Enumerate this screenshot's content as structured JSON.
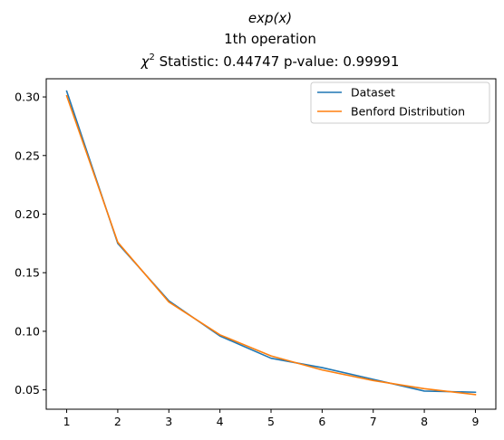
{
  "chart_data": {
    "type": "line",
    "title_lines": {
      "function": "exp(x)",
      "operation": "1th operation",
      "chi_label": "χ",
      "chi_sup": "2",
      "stat_text": " Statistic: 0.44747 p-value: 0.99991"
    },
    "xlabel": "",
    "ylabel": "",
    "x": [
      1,
      2,
      3,
      4,
      5,
      6,
      7,
      8,
      9
    ],
    "xlim": [
      0.6,
      9.4
    ],
    "ylim": [
      0.0335,
      0.3155
    ],
    "x_ticks": [
      "1",
      "2",
      "3",
      "4",
      "5",
      "6",
      "7",
      "8",
      "9"
    ],
    "y_ticks": [
      "0.05",
      "0.10",
      "0.15",
      "0.20",
      "0.25",
      "0.30"
    ],
    "y_tick_values": [
      0.05,
      0.1,
      0.15,
      0.2,
      0.25,
      0.3
    ],
    "grid": false,
    "legend_position": "upper right",
    "series": [
      {
        "name": "Dataset",
        "color": "#1f77b4",
        "values": [
          0.305,
          0.175,
          0.126,
          0.096,
          0.077,
          0.069,
          0.059,
          0.049,
          0.048
        ]
      },
      {
        "name": "Benford Distribution",
        "color": "#ff7f0e",
        "values": [
          0.301,
          0.176,
          0.125,
          0.097,
          0.079,
          0.067,
          0.058,
          0.051,
          0.046
        ]
      }
    ]
  }
}
